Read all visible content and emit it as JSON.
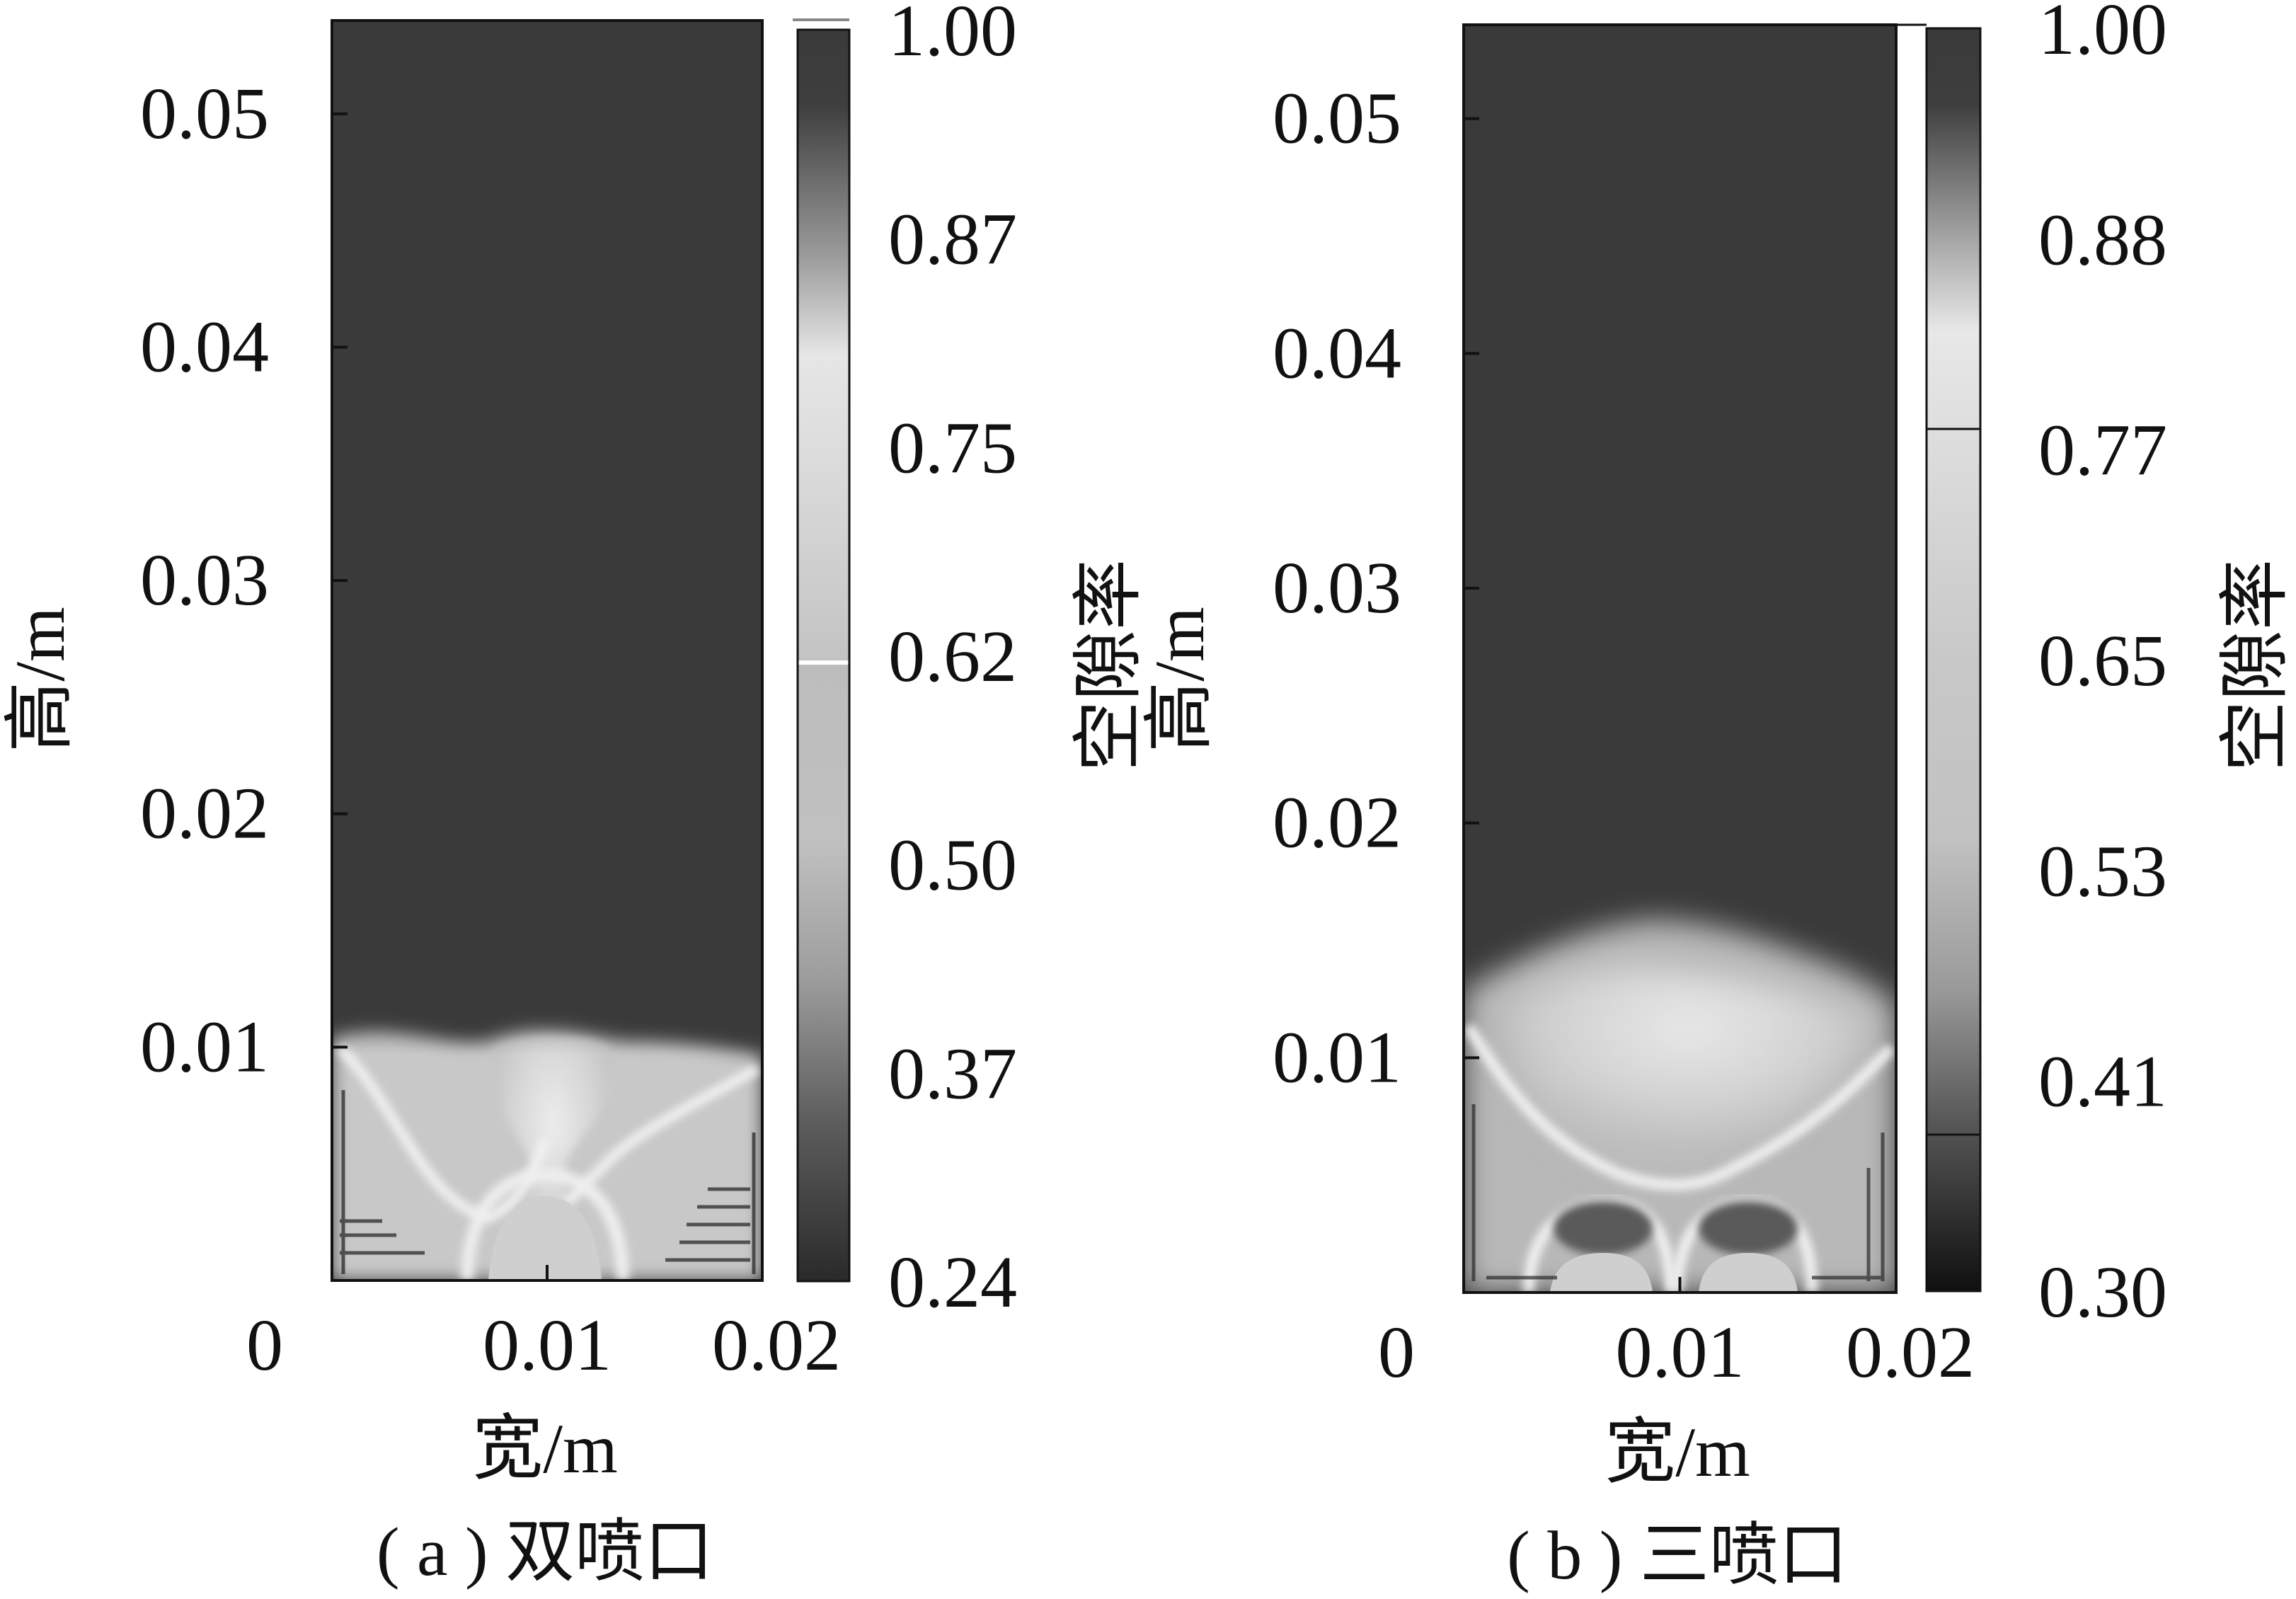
{
  "charts": [
    {
      "caption": "( a ) 双喷口",
      "xlabel": "宽/m",
      "ylabel": "高/m",
      "colorbar_label": "空隙率",
      "x_ticks": [
        "0",
        "0.01",
        "0.02"
      ],
      "y_ticks": [
        "0.01",
        "0.02",
        "0.03",
        "0.04",
        "0.05"
      ],
      "colorbar_ticks": [
        "1.00",
        "0.87",
        "0.75",
        "0.62",
        "0.50",
        "0.37",
        "0.24"
      ]
    },
    {
      "caption": "( b ) 三喷口",
      "xlabel": "宽/m",
      "ylabel": "高/m",
      "colorbar_label": "空隙率",
      "x_ticks": [
        "0",
        "0.01",
        "0.02"
      ],
      "y_ticks": [
        "0.01",
        "0.02",
        "0.03",
        "0.04",
        "0.05"
      ],
      "colorbar_ticks": [
        "1.00",
        "0.88",
        "0.77",
        "0.65",
        "0.53",
        "0.41",
        "0.30"
      ]
    }
  ],
  "chart_data": [
    {
      "type": "heatmap",
      "xlim": [
        0,
        0.02
      ],
      "ylim": [
        0,
        0.054
      ],
      "x_ticks": [
        0,
        0.01,
        0.02
      ],
      "y_ticks": [
        0.01,
        0.02,
        0.03,
        0.04,
        0.05
      ],
      "colorbar": {
        "min": 0.24,
        "max": 1.0,
        "ticks": [
          1.0,
          0.87,
          0.75,
          0.62,
          0.5,
          0.37,
          0.24
        ],
        "colormap": "grayscale"
      },
      "bed_height": 0.01
    },
    {
      "type": "heatmap",
      "xlim": [
        0,
        0.02
      ],
      "ylim": [
        0,
        0.054
      ],
      "x_ticks": [
        0,
        0.01,
        0.02
      ],
      "y_ticks": [
        0.01,
        0.02,
        0.03,
        0.04,
        0.05
      ],
      "colorbar": {
        "min": 0.3,
        "max": 1.0,
        "ticks": [
          1.0,
          0.88,
          0.77,
          0.65,
          0.53,
          0.41,
          0.3
        ],
        "colormap": "grayscale"
      },
      "bed_height": 0.015
    }
  ]
}
